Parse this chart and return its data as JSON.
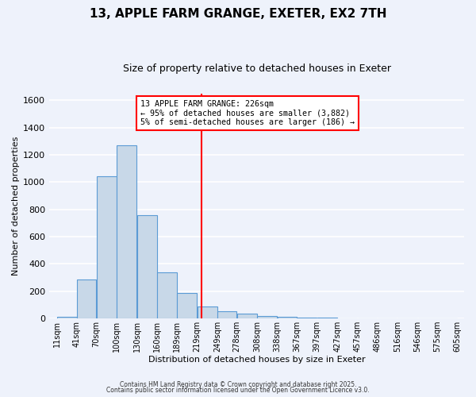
{
  "title": "13, APPLE FARM GRANGE, EXETER, EX2 7TH",
  "subtitle": "Size of property relative to detached houses in Exeter",
  "xlabel": "Distribution of detached houses by size in Exeter",
  "ylabel": "Number of detached properties",
  "bar_left_edges": [
    11,
    41,
    70,
    100,
    130,
    160,
    189,
    219,
    249,
    278,
    308,
    338,
    367,
    397,
    427,
    457,
    486,
    516,
    546,
    575
  ],
  "bar_widths": [
    30,
    29,
    30,
    30,
    30,
    29,
    30,
    30,
    29,
    30,
    30,
    29,
    30,
    30,
    30,
    29,
    29,
    30,
    29,
    30
  ],
  "bar_heights": [
    10,
    285,
    1045,
    1270,
    760,
    340,
    185,
    85,
    50,
    35,
    20,
    10,
    5,
    5,
    0,
    0,
    0,
    0,
    0,
    0
  ],
  "bar_color": "#c8d8e8",
  "bar_edge_color": "#5b9bd5",
  "tick_labels": [
    "11sqm",
    "41sqm",
    "70sqm",
    "100sqm",
    "130sqm",
    "160sqm",
    "189sqm",
    "219sqm",
    "249sqm",
    "278sqm",
    "308sqm",
    "338sqm",
    "367sqm",
    "397sqm",
    "427sqm",
    "457sqm",
    "486sqm",
    "516sqm",
    "546sqm",
    "575sqm",
    "605sqm"
  ],
  "tick_positions": [
    11,
    41,
    70,
    100,
    130,
    160,
    189,
    219,
    249,
    278,
    308,
    338,
    367,
    397,
    427,
    457,
    486,
    516,
    546,
    575,
    605
  ],
  "property_value": 226,
  "vline_color": "red",
  "ylim": [
    0,
    1650
  ],
  "xlim": [
    0,
    615
  ],
  "annotation_title": "13 APPLE FARM GRANGE: 226sqm",
  "annotation_line1": "← 95% of detached houses are smaller (3,882)",
  "annotation_line2": "5% of semi-detached houses are larger (186) →",
  "annotation_box_color": "#ffffff",
  "annotation_box_edge_color": "red",
  "footnote1": "Contains HM Land Registry data © Crown copyright and database right 2025.",
  "footnote2": "Contains public sector information licensed under the Open Government Licence v3.0.",
  "background_color": "#eef2fb",
  "grid_color": "#ffffff",
  "title_fontsize": 11,
  "subtitle_fontsize": 9,
  "ylabel_fontsize": 8,
  "xlabel_fontsize": 8,
  "ytick_fontsize": 8,
  "xtick_fontsize": 7
}
